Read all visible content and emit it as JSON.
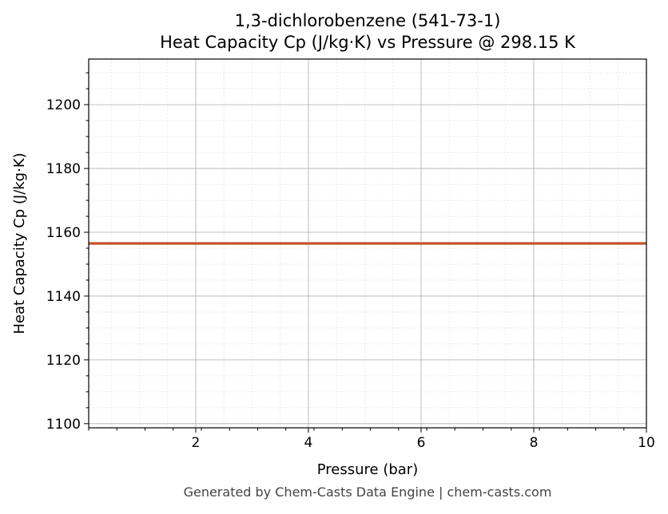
{
  "chart_data": {
    "type": "line",
    "title_line1": "1,3-dichlorobenzene (541-73-1)",
    "title_line2": "Heat Capacity Cp (J/kg·K) vs Pressure @ 298.15 K",
    "xlabel": "Pressure (bar)",
    "ylabel": "Heat Capacity Cp (J/kg·K)",
    "xlim": [
      0.1,
      10
    ],
    "ylim": [
      1098.7,
      1214.3
    ],
    "xticks": [
      2,
      4,
      6,
      8,
      10
    ],
    "xtick_labels": [
      "2",
      "4",
      "6",
      "8",
      "10"
    ],
    "yticks": [
      1100,
      1120,
      1140,
      1160,
      1180,
      1200
    ],
    "ytick_labels": [
      "1100",
      "1120",
      "1140",
      "1160",
      "1180",
      "1200"
    ],
    "grid": true,
    "series": [
      {
        "x": [
          0.1,
          1,
          2,
          3,
          4,
          5,
          6,
          7,
          8,
          9,
          10
        ],
        "y": [
          1156.5,
          1156.5,
          1156.5,
          1156.5,
          1156.5,
          1156.5,
          1156.5,
          1156.5,
          1156.5,
          1156.5,
          1156.5
        ],
        "color": "#c8502a"
      }
    ]
  },
  "footer": "Generated by Chem-Casts Data Engine | chem-casts.com"
}
